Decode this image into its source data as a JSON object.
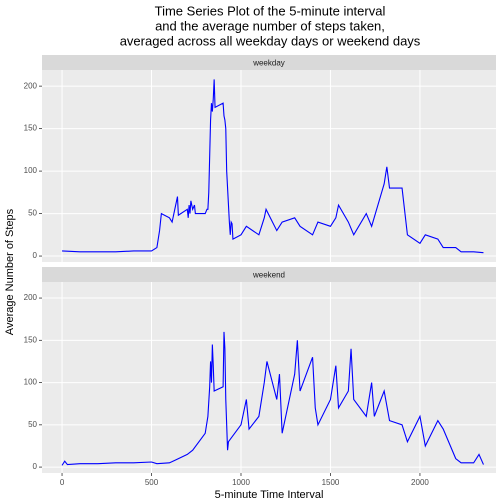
{
  "chart_data": {
    "type": "line",
    "title": [
      "Time Series Plot of the 5-minute interval",
      "and the average number of steps taken,",
      "averaged across all weekday days or weekend days"
    ],
    "xlabel": "5-minute Time Interval",
    "ylabel": "Average Number of Steps",
    "xlim": [
      -112,
      2425
    ],
    "xticks": [
      0,
      500,
      1000,
      1500,
      2000
    ],
    "ylim": [
      -7,
      219
    ],
    "yticks": [
      0,
      50,
      100,
      150,
      200
    ],
    "grid": true,
    "series": [
      {
        "name": "weekday",
        "color": "#0000ff",
        "x": [
          0,
          100,
          200,
          300,
          400,
          500,
          530,
          545,
          555,
          600,
          615,
          630,
          640,
          645,
          650,
          700,
          705,
          710,
          715,
          720,
          730,
          740,
          745,
          800,
          810,
          815,
          820,
          830,
          835,
          840,
          845,
          850,
          855,
          900,
          905,
          910,
          915,
          920,
          925,
          930,
          935,
          940,
          945,
          950,
          955,
          1000,
          1030,
          1100,
          1130,
          1140,
          1200,
          1230,
          1300,
          1330,
          1400,
          1430,
          1500,
          1530,
          1545,
          1600,
          1630,
          1700,
          1730,
          1800,
          1815,
          1830,
          1900,
          1930,
          2000,
          2030,
          2100,
          2130,
          2200,
          2230,
          2300,
          2355
        ],
        "values": [
          6,
          5,
          5,
          5,
          6,
          6,
          10,
          30,
          50,
          45,
          40,
          55,
          65,
          70,
          48,
          55,
          45,
          60,
          50,
          65,
          55,
          60,
          50,
          50,
          55,
          55,
          75,
          160,
          180,
          170,
          185,
          208,
          175,
          180,
          165,
          160,
          150,
          100,
          80,
          60,
          40,
          25,
          40,
          38,
          20,
          25,
          35,
          25,
          45,
          55,
          30,
          40,
          45,
          35,
          25,
          40,
          35,
          45,
          60,
          40,
          25,
          50,
          35,
          85,
          105,
          80,
          80,
          25,
          15,
          25,
          20,
          10,
          10,
          5,
          5,
          4
        ]
      },
      {
        "name": "weekend",
        "color": "#0000ff",
        "x": [
          0,
          15,
          30,
          100,
          200,
          300,
          400,
          500,
          530,
          600,
          630,
          700,
          730,
          800,
          815,
          825,
          830,
          835,
          840,
          845,
          850,
          900,
          905,
          910,
          915,
          920,
          925,
          930,
          1000,
          1030,
          1045,
          1100,
          1130,
          1145,
          1200,
          1215,
          1230,
          1300,
          1315,
          1330,
          1400,
          1415,
          1430,
          1500,
          1530,
          1545,
          1600,
          1615,
          1630,
          1700,
          1730,
          1745,
          1800,
          1830,
          1900,
          1930,
          2000,
          2030,
          2100,
          2130,
          2200,
          2230,
          2300,
          2330,
          2355
        ],
        "values": [
          2,
          7,
          3,
          4,
          4,
          5,
          5,
          6,
          4,
          5,
          8,
          15,
          20,
          40,
          60,
          95,
          125,
          100,
          145,
          120,
          90,
          95,
          160,
          140,
          80,
          50,
          20,
          30,
          50,
          80,
          45,
          60,
          100,
          125,
          80,
          110,
          40,
          110,
          150,
          90,
          130,
          70,
          50,
          80,
          120,
          70,
          90,
          140,
          80,
          60,
          100,
          60,
          90,
          55,
          50,
          30,
          60,
          25,
          55,
          45,
          10,
          5,
          5,
          15,
          3
        ]
      }
    ]
  }
}
